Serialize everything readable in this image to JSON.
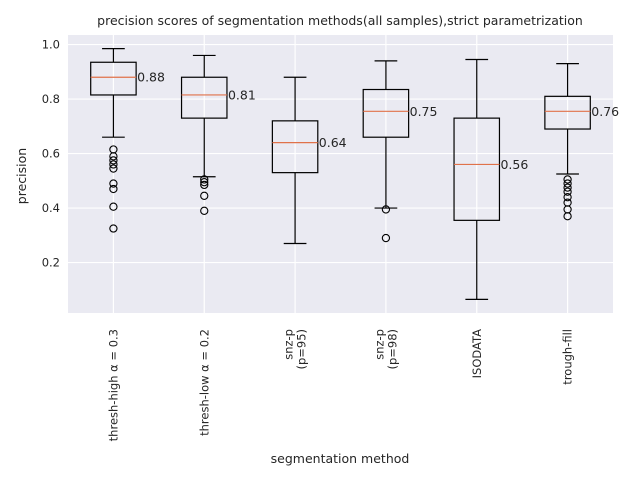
{
  "chart_data": {
    "type": "box",
    "title": "precision scores of segmentation methods(all samples),strict parametrization",
    "xlabel": "segmentation method",
    "ylabel": "precision",
    "ylim": [
      0.015,
      1.035
    ],
    "yticks": [
      0.2,
      0.4,
      0.6,
      0.8,
      1.0
    ],
    "ytick_labels": [
      "0.2",
      "0.4",
      "0.6",
      "0.8",
      "1.0"
    ],
    "grid": true,
    "colors": {
      "plot_bg": "#EAEAF2",
      "grid": "#FFFFFF",
      "box": "#000000",
      "median": "#E0724A"
    },
    "categories": [
      {
        "label_lines": [
          "thresh-high α = 0.3"
        ]
      },
      {
        "label_lines": [
          "thresh-low α = 0.2"
        ]
      },
      {
        "label_lines": [
          "snz-p",
          "(p=95)"
        ]
      },
      {
        "label_lines": [
          "snz-p",
          "(p=98)"
        ]
      },
      {
        "label_lines": [
          "ISODATA"
        ]
      },
      {
        "label_lines": [
          "trough-fill"
        ]
      }
    ],
    "series": [
      {
        "whisker_low": 0.66,
        "q1": 0.815,
        "median": 0.88,
        "q3": 0.935,
        "whisker_high": 0.985,
        "median_label": "0.88",
        "outliers": [
          0.615,
          0.59,
          0.575,
          0.56,
          0.545,
          0.49,
          0.47,
          0.405,
          0.325
        ]
      },
      {
        "whisker_low": 0.515,
        "q1": 0.73,
        "median": 0.815,
        "q3": 0.88,
        "whisker_high": 0.96,
        "median_label": "0.81",
        "outliers": [
          0.505,
          0.495,
          0.485,
          0.445,
          0.39
        ]
      },
      {
        "whisker_low": 0.27,
        "q1": 0.53,
        "median": 0.64,
        "q3": 0.72,
        "whisker_high": 0.88,
        "median_label": "0.64",
        "outliers": []
      },
      {
        "whisker_low": 0.4,
        "q1": 0.66,
        "median": 0.755,
        "q3": 0.835,
        "whisker_high": 0.94,
        "median_label": "0.75",
        "outliers": [
          0.395,
          0.29
        ]
      },
      {
        "whisker_low": 0.065,
        "q1": 0.355,
        "median": 0.56,
        "q3": 0.73,
        "whisker_high": 0.945,
        "median_label": "0.56",
        "outliers": []
      },
      {
        "whisker_low": 0.525,
        "q1": 0.69,
        "median": 0.755,
        "q3": 0.81,
        "whisker_high": 0.93,
        "median_label": "0.76",
        "outliers": [
          0.505,
          0.49,
          0.475,
          0.46,
          0.44,
          0.42,
          0.395,
          0.37
        ]
      }
    ]
  }
}
